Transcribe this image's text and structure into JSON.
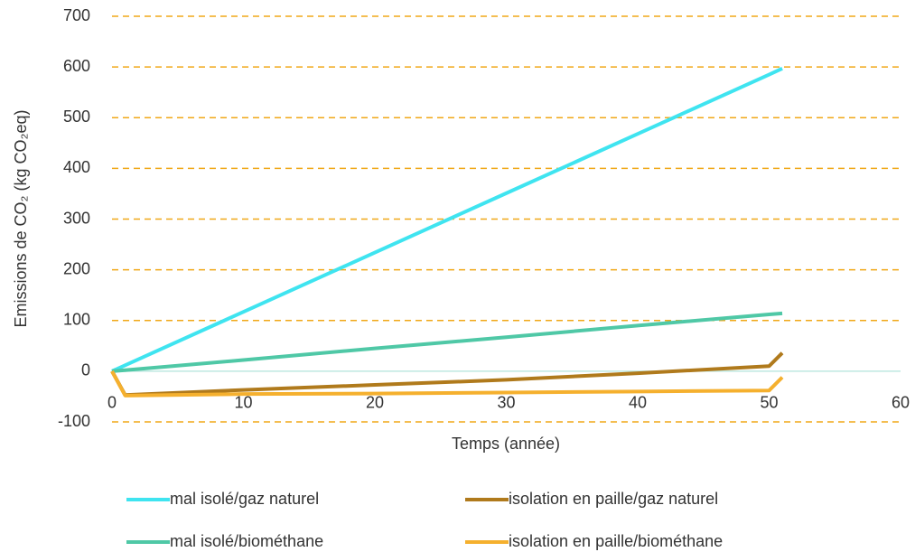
{
  "chart_data": {
    "type": "line",
    "y_label": "Emissions de CO₂ (kg CO₂eq)",
    "x_label": "Temps (année)",
    "x": [
      0,
      1,
      10,
      20,
      30,
      40,
      50,
      51
    ],
    "series": [
      {
        "name": "mal isolé/gaz naturel",
        "color": "#3fe4f0",
        "values": [
          0,
          11.7,
          117,
          234,
          351,
          468,
          585,
          597
        ]
      },
      {
        "name": "isolation en paille/gaz naturel",
        "color": "#b07a1c",
        "values": [
          0,
          -47,
          -37,
          -27,
          -17,
          -4,
          10,
          36
        ]
      },
      {
        "name": "mal isolé/biométhane",
        "color": "#4fc8a6",
        "values": [
          0,
          2,
          22,
          45,
          67,
          90,
          112,
          114
        ]
      },
      {
        "name": "isolation en paille/biométhane",
        "color": "#f5b02e",
        "values": [
          0,
          -48,
          -45,
          -44,
          -42,
          -40,
          -38,
          -12
        ]
      }
    ],
    "xlim": [
      0,
      60
    ],
    "xticks": [
      0,
      10,
      20,
      30,
      40,
      50,
      60
    ],
    "ylim": [
      -100,
      700
    ],
    "yticks": [
      -100,
      0,
      100,
      200,
      300,
      400,
      500,
      600,
      700
    ],
    "grid": true,
    "grid_color": "#f0a818",
    "zero_line_color": "#bfe8e0"
  }
}
